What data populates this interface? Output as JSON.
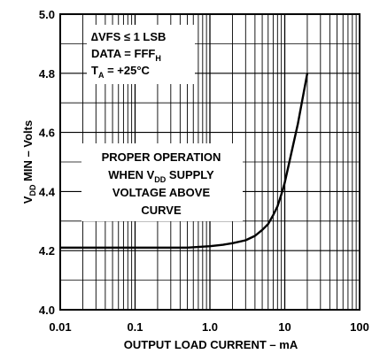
{
  "chart_data": {
    "type": "line",
    "x_scale": "log",
    "xlabel": "OUTPUT LOAD CURRENT – mA",
    "ylabel": {
      "main": "V",
      "sub": "DD",
      "rest": " MIN – Volts"
    },
    "xlim": [
      0.01,
      100
    ],
    "ylim": [
      4.0,
      5.0
    ],
    "x_ticks": [
      {
        "value": 0.01,
        "label": "0.01"
      },
      {
        "value": 0.1,
        "label": "0.1"
      },
      {
        "value": 1,
        "label": "1.0"
      },
      {
        "value": 10,
        "label": "10"
      },
      {
        "value": 100,
        "label": "100"
      }
    ],
    "y_ticks": [
      {
        "value": 4.0,
        "label": "4.0"
      },
      {
        "value": 4.2,
        "label": "4.2"
      },
      {
        "value": 4.4,
        "label": "4.4"
      },
      {
        "value": 4.6,
        "label": "4.6"
      },
      {
        "value": 4.8,
        "label": "4.8"
      },
      {
        "value": 5.0,
        "label": "5.0"
      }
    ],
    "grid": true,
    "series": [
      {
        "x": [
          0.01,
          0.1,
          0.5,
          1.0,
          1.5,
          2.0,
          3.0,
          4.0,
          5.0,
          6.0,
          7.0,
          8.0,
          9.0,
          10.0,
          12.0,
          15.0,
          20.0
        ],
        "y": [
          4.21,
          4.21,
          4.21,
          4.215,
          4.22,
          4.225,
          4.235,
          4.25,
          4.27,
          4.29,
          4.32,
          4.35,
          4.39,
          4.43,
          4.52,
          4.63,
          4.8
        ]
      }
    ],
    "annotations": {
      "conditions": [
        {
          "main": "∆VFS ≤ 1 LSB"
        },
        {
          "main": "DATA = FFF",
          "sub": "H"
        },
        {
          "main": "T",
          "sub": "A",
          "rest": " = +25°C"
        }
      ],
      "region": [
        {
          "main": "PROPER OPERATION"
        },
        {
          "main": "WHEN V",
          "sub": "DD",
          "rest": " SUPPLY"
        },
        {
          "main": "VOLTAGE ABOVE"
        },
        {
          "main": "CURVE"
        }
      ]
    }
  }
}
